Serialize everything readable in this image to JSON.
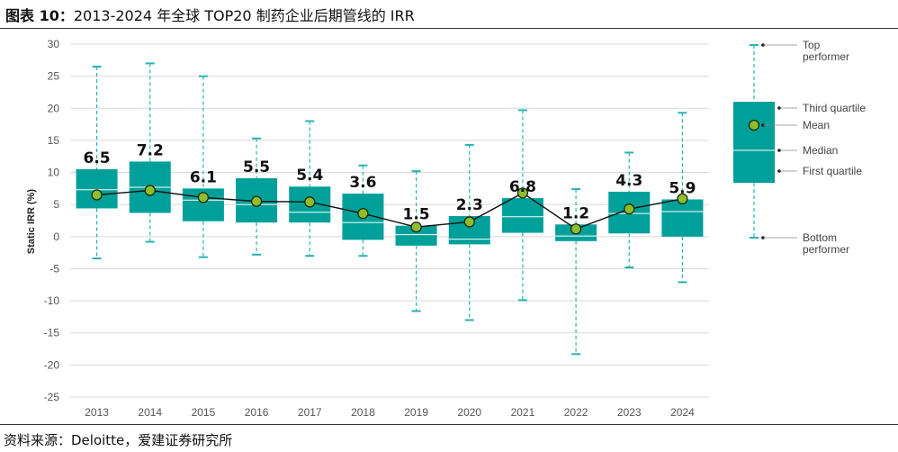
{
  "page": {
    "title_prefix": "图表 10：",
    "title_main": "2013-2024 年全球 TOP20 制药企业后期管线的 IRR",
    "source": "资料来源：Deloitte，爱建证券研究所"
  },
  "chart_data": {
    "type": "boxplot",
    "categories": [
      "2013",
      "2014",
      "2015",
      "2016",
      "2017",
      "2018",
      "2019",
      "2020",
      "2021",
      "2022",
      "2023",
      "2024"
    ],
    "ylabel": "Static IRR (%)",
    "ylim": [
      -25,
      30
    ],
    "yticks": [
      30,
      25,
      20,
      15,
      10,
      5,
      0,
      -5,
      -10,
      -15,
      -20,
      -25
    ],
    "grid": true,
    "mean_labels": [
      "6.5",
      "7.2",
      "6.1",
      "5.5",
      "5.4",
      "3.6",
      "1.5",
      "2.3",
      "6.8",
      "1.2",
      "4.3",
      "5.9"
    ],
    "boxes": [
      {
        "top": 26.5,
        "q3": 10.5,
        "median": 7.3,
        "q1": 4.4,
        "bottom": -3.4,
        "mean": 6.5
      },
      {
        "top": 27.0,
        "q3": 11.7,
        "median": 7.7,
        "q1": 3.7,
        "bottom": -0.8,
        "mean": 7.2
      },
      {
        "top": 25.0,
        "q3": 7.5,
        "median": 5.7,
        "q1": 2.4,
        "bottom": -3.2,
        "mean": 6.1
      },
      {
        "top": 15.3,
        "q3": 9.1,
        "median": 5.0,
        "q1": 2.2,
        "bottom": -2.8,
        "mean": 5.5
      },
      {
        "top": 18.0,
        "q3": 7.8,
        "median": 3.8,
        "q1": 2.2,
        "bottom": -3.0,
        "mean": 5.4
      },
      {
        "top": 11.1,
        "q3": 6.7,
        "median": 2.2,
        "q1": -0.5,
        "bottom": -3.0,
        "mean": 3.6
      },
      {
        "top": 10.2,
        "q3": 1.7,
        "median": 0.3,
        "q1": -1.4,
        "bottom": -11.6,
        "mean": 1.5
      },
      {
        "top": 14.3,
        "q3": 3.2,
        "median": -0.4,
        "q1": -1.2,
        "bottom": -13.0,
        "mean": 2.3
      },
      {
        "top": 19.7,
        "q3": 6.0,
        "median": 3.1,
        "q1": 0.6,
        "bottom": -9.9,
        "mean": 6.8
      },
      {
        "top": 7.4,
        "q3": 1.9,
        "median": 0.1,
        "q1": -0.7,
        "bottom": -18.3,
        "mean": 1.2
      },
      {
        "top": 13.1,
        "q3": 7.0,
        "median": 3.6,
        "q1": 0.5,
        "bottom": -4.8,
        "mean": 4.3
      },
      {
        "top": 19.3,
        "q3": 5.8,
        "median": 3.9,
        "q1": 0.0,
        "bottom": -7.1,
        "mean": 5.9
      }
    ],
    "legend": {
      "position": "right",
      "labels": {
        "top": "Top\nperformer",
        "q3": "Third quartile",
        "mean": "Mean",
        "median": "Median",
        "q1": "First quartile",
        "bottom": "Bottom\nperformer"
      }
    },
    "colors": {
      "box": "#00A09A",
      "whisker": "#29B3B0",
      "mean_fill": "#8DBE2D",
      "mean_stroke": "#1E2A10",
      "line": "#111111",
      "grid": "#D9D9D9"
    }
  }
}
